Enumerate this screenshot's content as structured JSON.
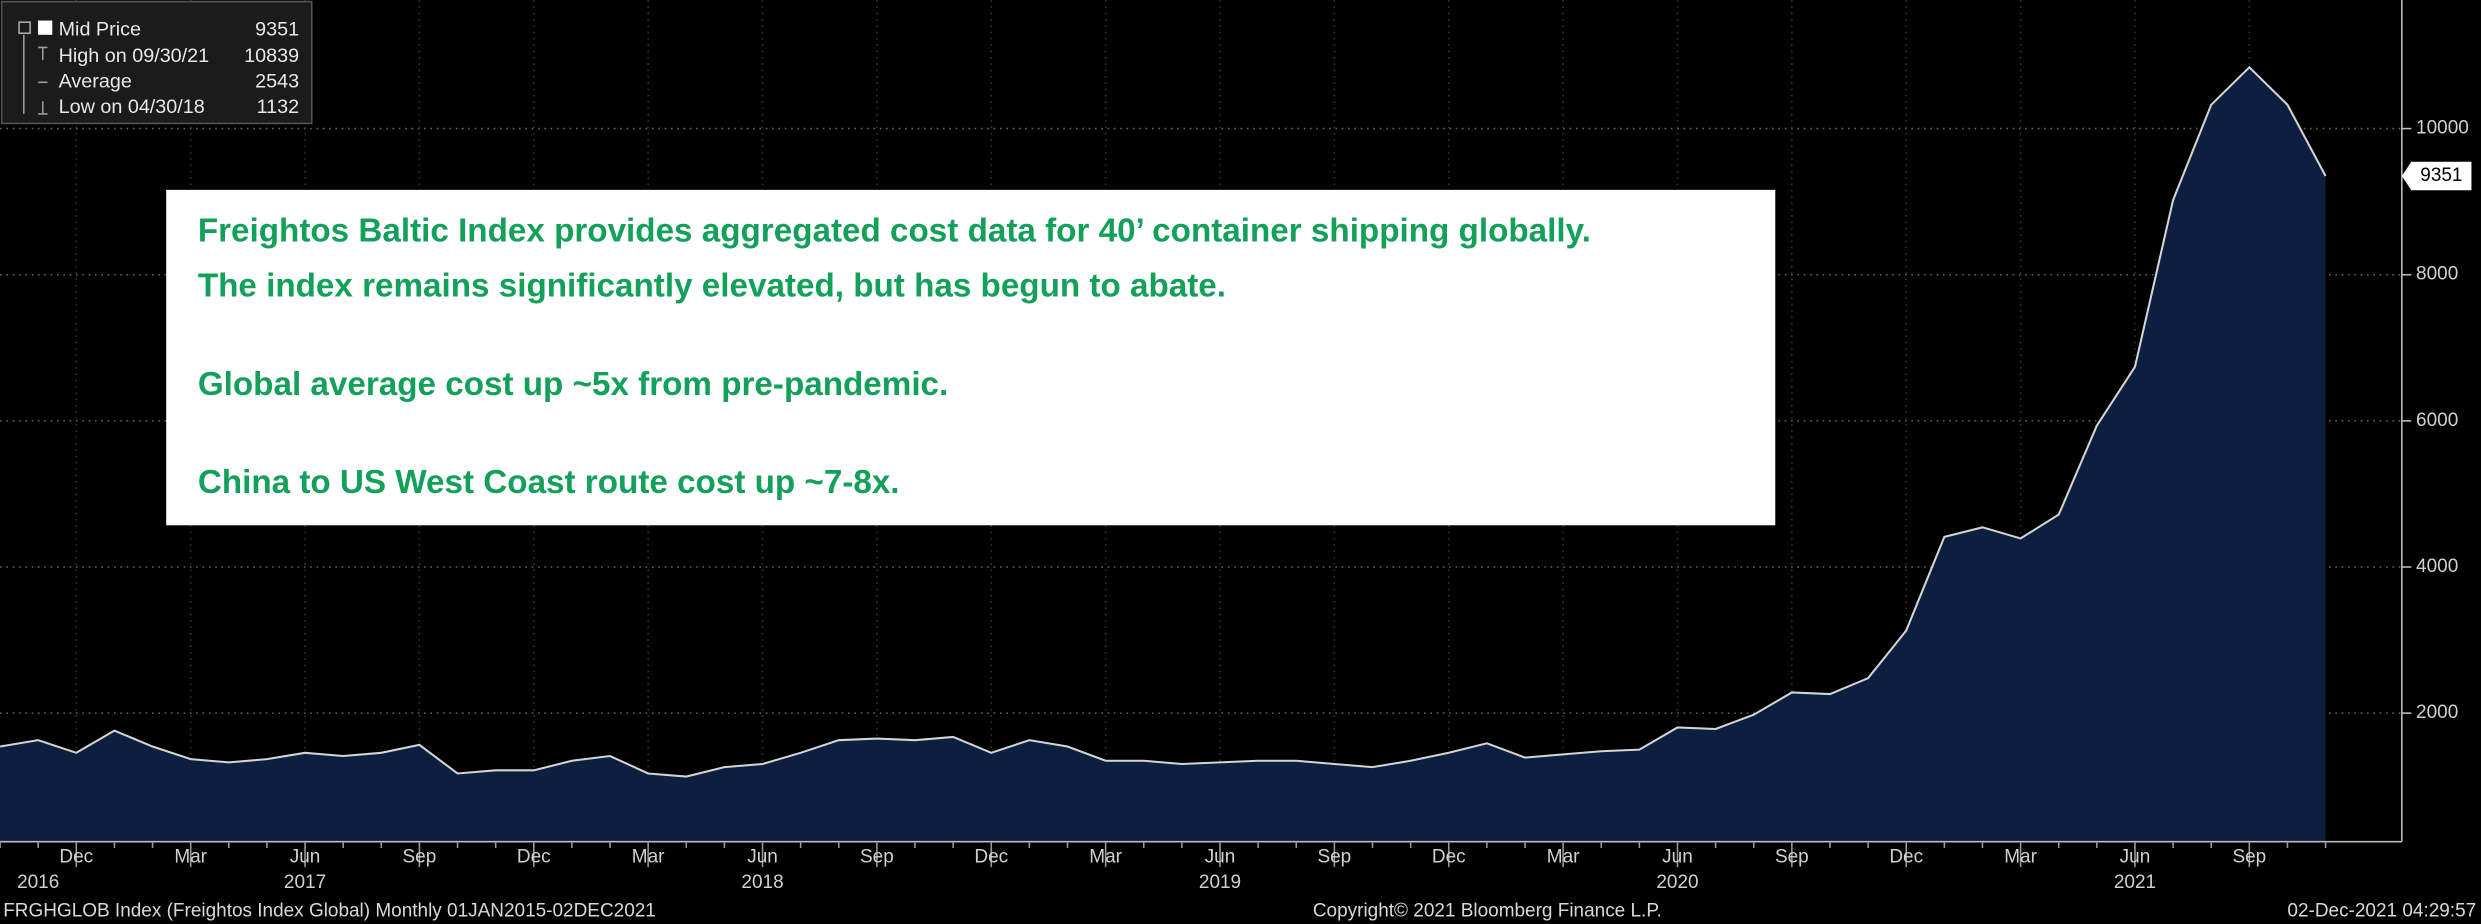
{
  "chart_data": {
    "type": "area",
    "series": [
      {
        "name": "Mid Price",
        "color": "#0c1f3f",
        "line_color": "#d4d4d4",
        "values": [
          1543,
          1630,
          1457,
          1760,
          1543,
          1370,
          1326,
          1370,
          1457,
          1413,
          1457,
          1565,
          1174,
          1217,
          1217,
          1348,
          1413,
          1174,
          1132,
          1261,
          1304,
          1457,
          1630,
          1652,
          1630,
          1674,
          1457,
          1630,
          1543,
          1348,
          1348,
          1304,
          1326,
          1348,
          1348,
          1304,
          1261,
          1348,
          1457,
          1587,
          1391,
          1435,
          1478,
          1500,
          1804,
          1783,
          1978,
          2283,
          2261,
          2478,
          3130,
          4413,
          4543,
          4391,
          4717,
          5935,
          6739,
          9022,
          10326,
          10839,
          10326,
          9351
        ]
      }
    ],
    "categories": [
      null,
      null,
      "Dec",
      null,
      null,
      "Mar",
      null,
      null,
      "Jun",
      null,
      null,
      "Sep",
      null,
      null,
      "Dec",
      null,
      null,
      "Mar",
      null,
      null,
      "Jun",
      null,
      null,
      "Sep",
      null,
      null,
      "Dec",
      null,
      null,
      "Mar",
      null,
      null,
      "Jun",
      null,
      null,
      "Sep",
      null,
      null,
      "Dec",
      null,
      null,
      "Mar",
      null,
      null,
      "Jun",
      null,
      null,
      "Sep",
      null,
      null,
      "Dec",
      null,
      null,
      "Mar",
      null,
      null,
      "Jun",
      null,
      null,
      "Sep",
      null,
      null
    ],
    "year_labels": [
      null,
      "2016",
      null,
      null,
      null,
      null,
      null,
      null,
      "2017",
      null,
      null,
      null,
      null,
      null,
      null,
      null,
      null,
      null,
      null,
      null,
      "2018",
      null,
      null,
      null,
      null,
      null,
      null,
      null,
      null,
      null,
      null,
      null,
      "2019",
      null,
      null,
      null,
      null,
      null,
      null,
      null,
      null,
      null,
      null,
      null,
      "2020",
      null,
      null,
      null,
      null,
      null,
      null,
      null,
      null,
      null,
      null,
      null,
      "2021",
      null,
      null,
      null,
      null,
      null
    ],
    "ylim": [
      240,
      11760
    ],
    "yticks": [
      2000,
      4000,
      6000,
      8000,
      10000
    ],
    "grid": true,
    "legend": [
      {
        "label": "High on 09/30/21",
        "value": 10839
      },
      {
        "label": "Average",
        "value": 2543
      },
      {
        "label": "Low on 04/30/18",
        "value": 1132
      }
    ]
  },
  "annotation": {
    "lines": [
      "Freightos Baltic Index provides aggregated cost data for 40’ container shipping globally.",
      "The index remains significantly elevated, but has begun to abate.",
      "Global average cost up ~5x from pre-pandemic.",
      "China to US West Coast route cost up ~7-8x."
    ]
  },
  "footer": {
    "left": "FRGHGLOB Index (Freightos Index Global)  Monthly 01JAN2015-02DEC2021",
    "center": "Copyright© 2021 Bloomberg Finance L.P.",
    "right": "02-Dec-2021 04:29:57"
  }
}
